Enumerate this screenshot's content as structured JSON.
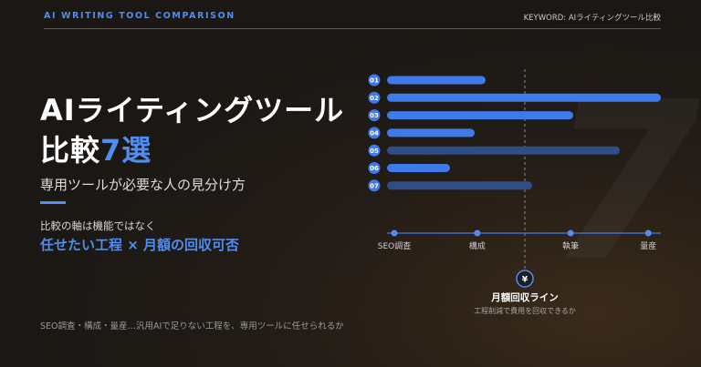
{
  "header": {
    "left": "AI WRITING TOOL COMPARISON",
    "right": "KEYWORD: AIライティングツール比較"
  },
  "title": {
    "line1": "AIライティングツール",
    "line2_prefix": "比較",
    "line2_accent": "7選"
  },
  "subtitle": "専用ツールが必要な人の見分け方",
  "axis_note": "比較の軸は機能ではなく",
  "axis_highlight": "任せたい工程 × 月額の回収可否",
  "footer_note": "SEO調査・構成・量産…汎用AIで足りない工程を、専用ツールに任せられるか",
  "decor_number": "7",
  "colors": {
    "accent": "#4f8df0",
    "bar_bright": "#3f7be8",
    "bar_dim": "#2d4f86"
  },
  "chart_data": {
    "type": "bar",
    "orientation": "horizontal",
    "categories": [
      "01",
      "02",
      "03",
      "04",
      "05",
      "06",
      "07"
    ],
    "values": [
      0.36,
      1.0,
      0.68,
      0.32,
      0.85,
      0.23,
      0.53
    ],
    "xlim": [
      0,
      1
    ],
    "x_ticks": [
      {
        "label": "SEO調査",
        "pos": 0.0
      },
      {
        "label": "構成",
        "pos": 0.32
      },
      {
        "label": "執筆",
        "pos": 0.68
      },
      {
        "label": "量産",
        "pos": 0.98
      }
    ],
    "threshold": {
      "value": 0.5,
      "icon": "¥",
      "label": "月額回収ライン",
      "sublabel": "工程削減で費用を回収できるか"
    },
    "dim_bars": [
      "05",
      "07"
    ]
  }
}
